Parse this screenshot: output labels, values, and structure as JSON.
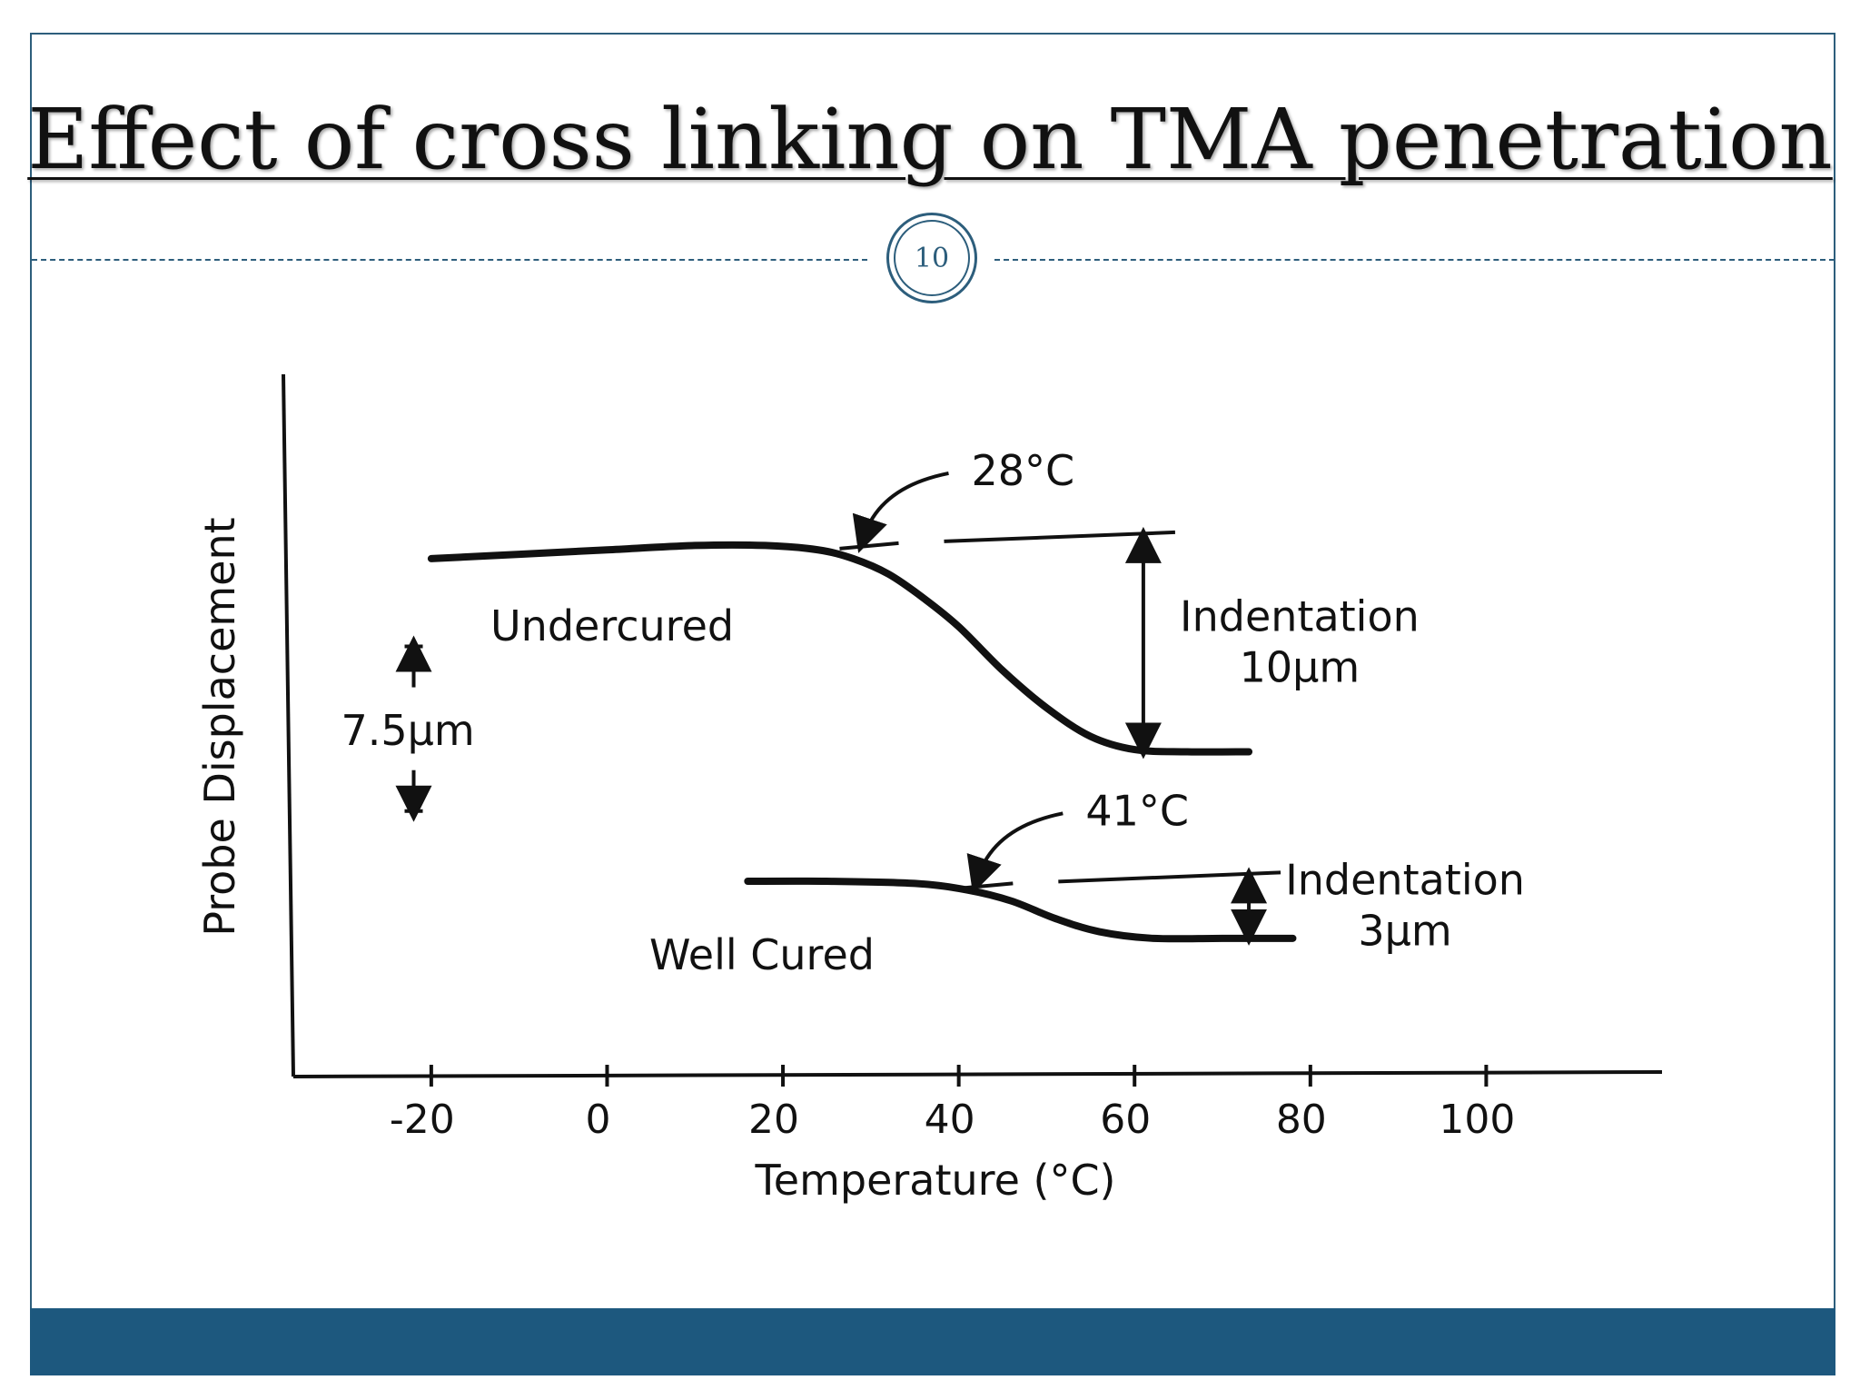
{
  "slide": {
    "title": "Effect of cross linking on TMA penetration",
    "page_number": "10",
    "accent_color": "#1d587e"
  },
  "chart_data": {
    "type": "line",
    "xlabel": "Temperature (°C)",
    "ylabel": "Probe Displacement",
    "xlim": [
      -36,
      120
    ],
    "ylim": [
      -6,
      26
    ],
    "x_ticks": [
      -20,
      0,
      20,
      40,
      60,
      80,
      100
    ],
    "series": [
      {
        "name": "Undercured",
        "color": "#111111",
        "x": [
          -20,
          -10,
          0,
          10,
          18,
          24,
          28,
          32,
          36,
          40,
          45,
          50,
          55,
          60,
          66,
          73
        ],
        "y": [
          17.6,
          17.8,
          18.0,
          18.2,
          18.2,
          18.0,
          17.6,
          16.9,
          15.8,
          14.5,
          12.5,
          10.8,
          9.5,
          8.9,
          8.8,
          8.8
        ]
      },
      {
        "name": "Well Cured",
        "color": "#111111",
        "x": [
          16,
          25,
          35,
          41,
          46,
          51,
          56,
          62,
          70,
          78
        ],
        "y": [
          2.9,
          2.9,
          2.8,
          2.5,
          2.0,
          1.2,
          0.6,
          0.3,
          0.3,
          0.3
        ]
      }
    ],
    "scale_bar": {
      "label": "7.5µm",
      "x": -22,
      "y_range": [
        6.1,
        13.6
      ]
    },
    "annotations": [
      {
        "series": "Undercured",
        "onset_label": "28°C",
        "onset_x": 28,
        "indentation_line1": "Indentation",
        "indentation_line2": "10µm",
        "indentation_from_y": 18.8,
        "indentation_to_y": 8.8,
        "indentation_x": 61
      },
      {
        "series": "Well Cured",
        "onset_label": "41°C",
        "onset_x": 41,
        "indentation_line1": "Indentation",
        "indentation_line2": "3µm",
        "indentation_from_y": 3.3,
        "indentation_to_y": 0.3,
        "indentation_x": 73
      }
    ]
  }
}
